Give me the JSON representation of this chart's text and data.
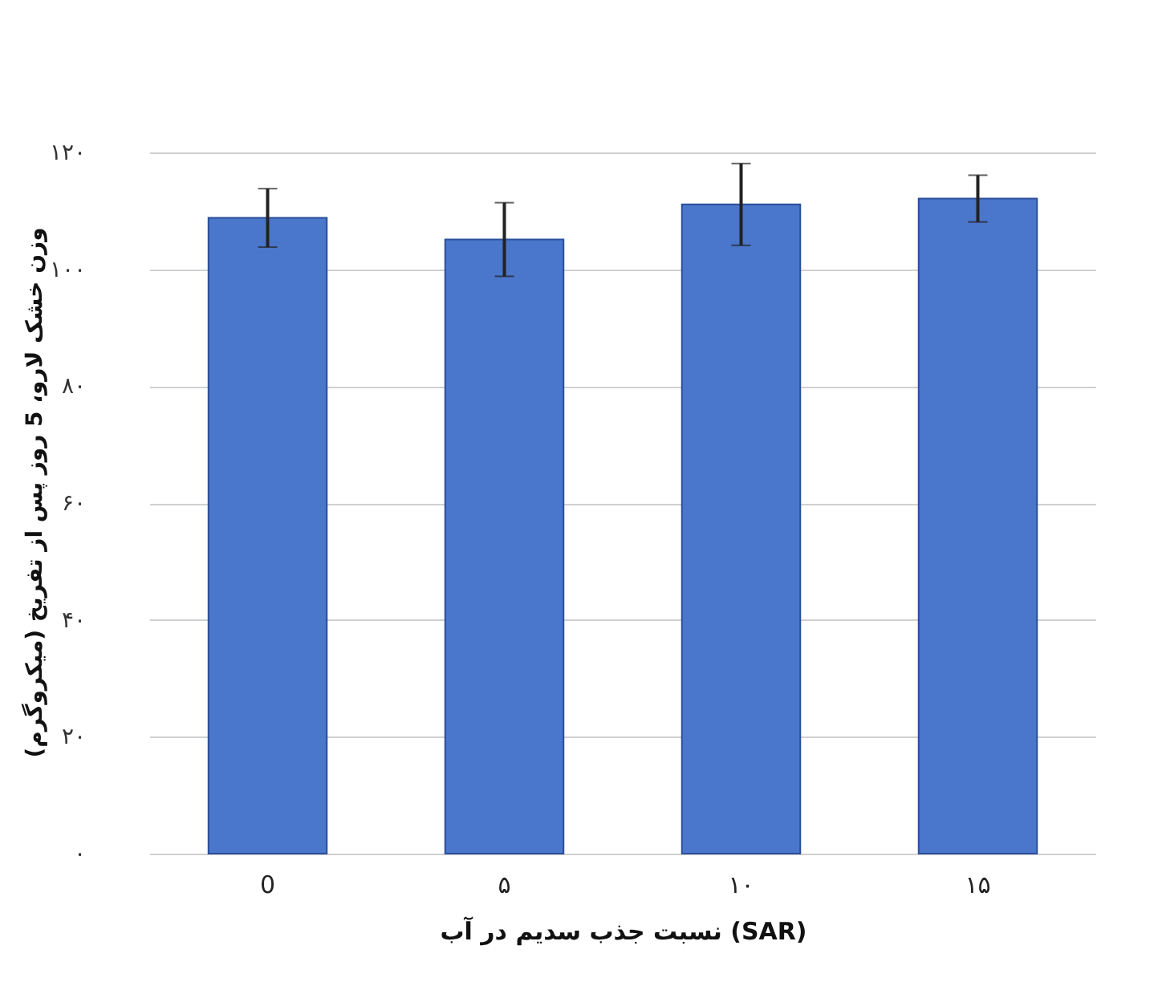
{
  "chart_data": {
    "type": "bar",
    "xlabel": "نسبت جذب سدیم در آب (SAR)",
    "ylabel": "وزن خشک لارو، 5 روز پس از تفریخ (میکروگرم)",
    "categories": [
      "0",
      "۵",
      "۱۰",
      "۱۵"
    ],
    "series": [
      {
        "color": "#4a76cb",
        "values": [
          108.8,
          105.1,
          111.1,
          112.1
        ],
        "errors": [
          5,
          6.3,
          7,
          4
        ]
      }
    ],
    "ylim": [
      0,
      120
    ],
    "yticks": [
      {
        "value": 0,
        "label": "۰"
      },
      {
        "value": 20,
        "label": "۲۰"
      },
      {
        "value": 40,
        "label": "۴۰"
      },
      {
        "value": 60,
        "label": "۶۰"
      },
      {
        "value": 80,
        "label": "۸۰"
      },
      {
        "value": 100,
        "label": "۱۰۰"
      },
      {
        "value": 120,
        "label": "۱۲۰"
      }
    ],
    "grid": "y"
  }
}
